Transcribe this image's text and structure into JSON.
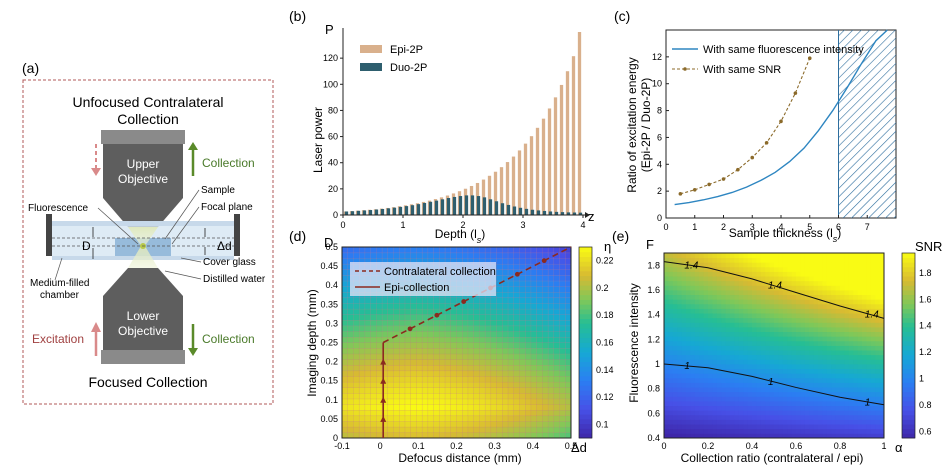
{
  "colors": {
    "epi": "#d9b08c",
    "duo": "#2e5e6e",
    "line_same_fluor": "#2e86c1",
    "line_same_snr": "#8b6a2a",
    "arrow": "#8b2a1f",
    "panel_border": "#b05a5a",
    "objective": "#6a6a6a",
    "green_arrow": "#5a8a2a",
    "red_arrow": "#d98a8a"
  },
  "panel_a": {
    "label": "(a)",
    "top_title_line1": "Unfocused Contralateral",
    "top_title_line2": "Collection",
    "upper_obj_line1": "Upper",
    "upper_obj_line2": "Objective",
    "lower_obj_line1": "Lower",
    "lower_obj_line2": "Objective",
    "collection_top": "Collection",
    "collection_bottom": "Collection",
    "excitation": "Excitation",
    "fluorescence": "Fluorescence",
    "sample": "Sample",
    "focal_plane": "Focal plane",
    "cover_glass": "Cover glass",
    "distilled_water": "Distilled water",
    "medium_line1": "Medium-filled",
    "medium_line2": "chamber",
    "D": "D",
    "delta_d": "Δd",
    "bottom_title": "Focused Collection"
  },
  "chart_data": [
    {
      "panel": "(b)",
      "type": "bar",
      "ylabel_letter": "P",
      "ylabel": "Laser power",
      "xlabel": "Depth (l",
      "xlabel_sub": "s",
      "xlabel_end": ")",
      "x_axis_letter": "z",
      "xlim": [
        0,
        4
      ],
      "ylim": [
        0,
        140
      ],
      "xticks": [
        "0",
        "1",
        "2",
        "3",
        "4"
      ],
      "yticks": [
        "0",
        "20",
        "40",
        "60",
        "80",
        "100",
        "120"
      ],
      "ytick_values": [
        0,
        20,
        40,
        60,
        80,
        100,
        120
      ],
      "legend": "top-left",
      "series": [
        {
          "name": "Epi-2P",
          "x": [
            0.05,
            0.15,
            0.25,
            0.35,
            0.45,
            0.55,
            0.65,
            0.75,
            0.85,
            0.95,
            1.05,
            1.15,
            1.25,
            1.35,
            1.45,
            1.55,
            1.65,
            1.75,
            1.85,
            1.95,
            2.05,
            2.15,
            2.25,
            2.35,
            2.45,
            2.55,
            2.65,
            2.75,
            2.85,
            2.95,
            3.05,
            3.15,
            3.25,
            3.35,
            3.45,
            3.55,
            3.65,
            3.75,
            3.85,
            3.95
          ],
          "values": [
            2.7,
            3.0,
            3.3,
            3.7,
            4.0,
            4.4,
            4.9,
            5.4,
            6.0,
            6.7,
            7.4,
            8.2,
            9.0,
            10.0,
            11.0,
            12.2,
            13.5,
            14.9,
            16.5,
            18.2,
            20.1,
            22.2,
            24.5,
            27.1,
            30.0,
            33.1,
            36.6,
            40.5,
            44.7,
            49.4,
            54.6,
            60.3,
            66.7,
            73.7,
            81.5,
            90.0,
            99.5,
            110,
            121.5,
            140
          ]
        },
        {
          "name": "Duo-2P",
          "x": [
            0.05,
            0.15,
            0.25,
            0.35,
            0.45,
            0.55,
            0.65,
            0.75,
            0.85,
            0.95,
            1.05,
            1.15,
            1.25,
            1.35,
            1.45,
            1.55,
            1.65,
            1.75,
            1.85,
            1.95,
            2.05,
            2.15,
            2.25,
            2.35,
            2.45,
            2.55,
            2.65,
            2.75,
            2.85,
            2.95,
            3.05,
            3.15,
            3.25,
            3.35,
            3.45,
            3.55,
            3.65,
            3.75,
            3.85,
            3.95
          ],
          "values": [
            2.7,
            2.9,
            3.2,
            3.5,
            3.8,
            4.2,
            4.6,
            5.1,
            5.6,
            6.2,
            6.8,
            7.5,
            8.3,
            9.2,
            10.1,
            11.0,
            12.0,
            13.0,
            13.8,
            14.5,
            15.0,
            15.0,
            14.5,
            13.5,
            12.0,
            10.5,
            9.0,
            7.7,
            6.5,
            5.5,
            4.7,
            4.0,
            3.5,
            3.1,
            2.7,
            2.4,
            2.2,
            2.0,
            1.9,
            1.8
          ]
        }
      ]
    },
    {
      "panel": "(c)",
      "type": "line",
      "ylabel_line1": "Ratio of excitation energy",
      "ylabel_line2": "(Epi-2P / Duo-2P)",
      "xlabel": "Sample thickness (l",
      "xlabel_sub": "s",
      "xlabel_end": ")",
      "xlim": [
        0,
        8
      ],
      "ylim": [
        0,
        14
      ],
      "xticks": [
        "0",
        "1",
        "2",
        "3",
        "4",
        "5",
        "6",
        "7"
      ],
      "yticks": [
        "0",
        "2",
        "4",
        "6",
        "8",
        "10",
        "12"
      ],
      "hatched_region_x": [
        6,
        8
      ],
      "legend": "top-left",
      "series": [
        {
          "name": "With same fluorescence intensity",
          "style": "solid",
          "x": [
            0.3,
            0.8,
            1.3,
            1.8,
            2.3,
            2.8,
            3.3,
            3.8,
            4.3,
            4.8,
            5.3,
            5.8,
            6.3,
            6.8,
            7.3,
            7.7
          ],
          "values": [
            1.0,
            1.15,
            1.35,
            1.6,
            1.9,
            2.3,
            2.8,
            3.4,
            4.2,
            5.2,
            6.5,
            8.0,
            9.7,
            11.5,
            13.2,
            14.5
          ]
        },
        {
          "name": "With same SNR",
          "style": "dotted-markers",
          "x": [
            0.5,
            1.0,
            1.5,
            2.0,
            2.5,
            3.0,
            3.5,
            4.0,
            4.5,
            5.0
          ],
          "values": [
            1.8,
            2.1,
            2.5,
            2.9,
            3.6,
            4.5,
            5.6,
            7.2,
            9.3,
            11.9
          ]
        }
      ]
    },
    {
      "panel": "(d)",
      "type": "heatmap",
      "ylabel_letter": "D",
      "ylabel": "Imaging depth (mm)",
      "xlabel": "Defocus distance (mm)",
      "x_axis_letter": "Δd",
      "xlim": [
        -0.1,
        0.5
      ],
      "ylim": [
        0,
        0.5
      ],
      "xticks": [
        "-0.1",
        "0",
        "0.1",
        "0.2",
        "0.3",
        "0.4",
        "0.5"
      ],
      "yticks": [
        "0",
        "0.05",
        "0.1",
        "0.15",
        "0.2",
        "0.25",
        "0.3",
        "0.35",
        "0.4",
        "0.45",
        "0.5"
      ],
      "colorbar_title": "η",
      "colorbar_ticks": [
        "0.1",
        "0.12",
        "0.14",
        "0.16",
        "0.18",
        "0.2",
        "0.22"
      ],
      "colorbar_range": [
        0.09,
        0.23
      ],
      "legend": "top-left",
      "series": [
        {
          "name": "Contralateral collection",
          "style": "dashed",
          "x": [
            0.008,
            0.5
          ],
          "values": [
            0.25,
            0.5
          ]
        },
        {
          "name": "Epi-collection",
          "style": "solid",
          "x": [
            0.008,
            0.008
          ],
          "values": [
            0,
            0.25
          ]
        }
      ]
    },
    {
      "panel": "(e)",
      "type": "heatmap",
      "ylabel_letter": "F",
      "ylabel": "Fluorescence intensity",
      "xlabel": "Collection ratio (contralateral / epi)",
      "x_axis_letter": "α",
      "xlim": [
        0,
        1
      ],
      "ylim": [
        0.4,
        1.9
      ],
      "xticks": [
        "0",
        "0.2",
        "0.4",
        "0.6",
        "0.8",
        "1"
      ],
      "yticks": [
        "0.4",
        "0.6",
        "0.8",
        "1",
        "1.2",
        "1.4",
        "1.6",
        "1.8"
      ],
      "colorbar_title": "SNR",
      "colorbar_ticks": [
        "0.6",
        "0.8",
        "1",
        "1.2",
        "1.4",
        "1.6",
        "1.8"
      ],
      "colorbar_range": [
        0.55,
        1.95
      ],
      "contours": [
        {
          "level_label": "1.4",
          "x": [
            0,
            0.2,
            0.4,
            0.6,
            0.8,
            1.0
          ],
          "values": [
            1.83,
            1.78,
            1.69,
            1.58,
            1.47,
            1.37
          ]
        },
        {
          "level_label": "1",
          "x": [
            0,
            0.2,
            0.4,
            0.6,
            0.8,
            1.0
          ],
          "values": [
            1.0,
            0.97,
            0.9,
            0.81,
            0.73,
            0.67
          ]
        }
      ]
    }
  ]
}
